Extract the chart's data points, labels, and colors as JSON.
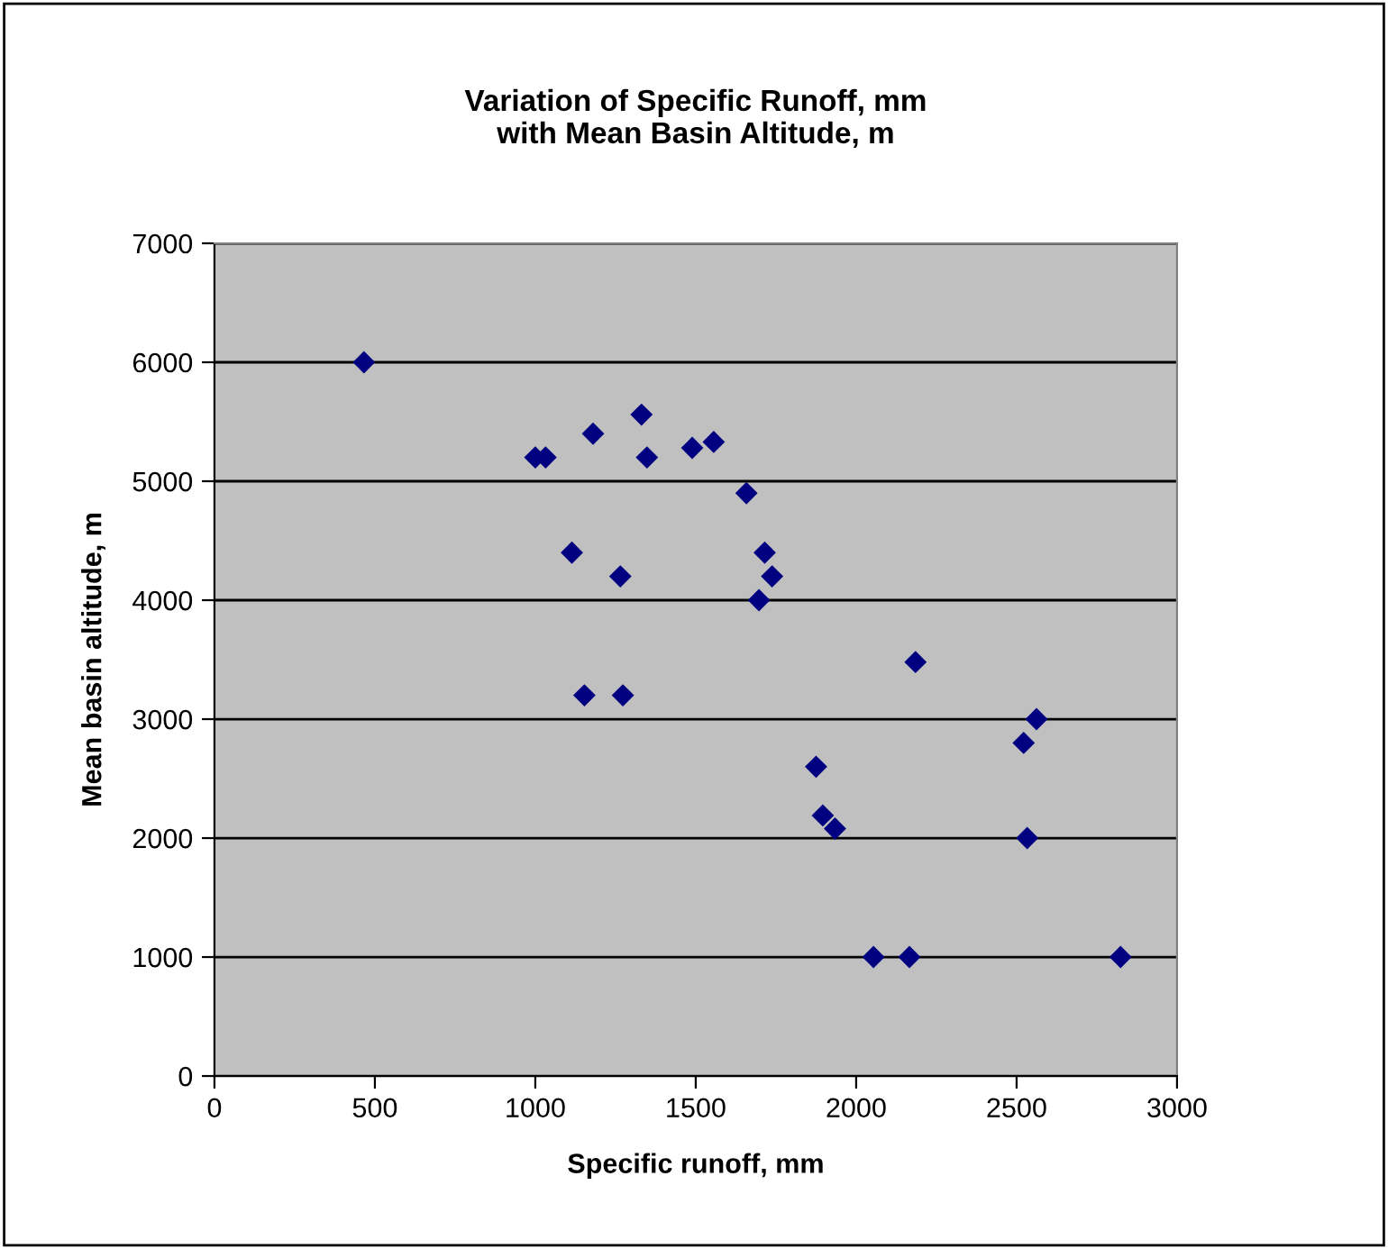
{
  "chart_data": {
    "type": "scatter",
    "title": "Variation of Specific Runoff, mm\nwith Mean Basin Altitude, m",
    "xlabel": "Specific runoff, mm",
    "ylabel": "Mean basin altitude, m",
    "x": [
      466,
      1000,
      1032,
      1180,
      1331,
      1348,
      1489,
      1556,
      1658,
      1715,
      1738,
      1697,
      1114,
      1265,
      1153,
      1273,
      2185,
      2562,
      2522,
      1875,
      1896,
      1934,
      2533,
      2054,
      2166,
      2824
    ],
    "values": [
      6000,
      5200,
      5200,
      5400,
      5560,
      5200,
      5280,
      5330,
      4900,
      4400,
      4200,
      4000,
      4400,
      4200,
      3200,
      3200,
      3480,
      3000,
      2800,
      2600,
      2190,
      2080,
      2000,
      1000,
      1000,
      1000
    ],
    "color": "#000080",
    "marker": "diamond",
    "grid": "y",
    "xlim": [
      0,
      3000
    ],
    "xticks": [
      0,
      500,
      1000,
      1500,
      2000,
      2500,
      3000
    ],
    "ylim": [
      0,
      7000
    ],
    "yticks": [
      0,
      1000,
      2000,
      3000,
      4000,
      5000,
      6000,
      7000
    ]
  }
}
